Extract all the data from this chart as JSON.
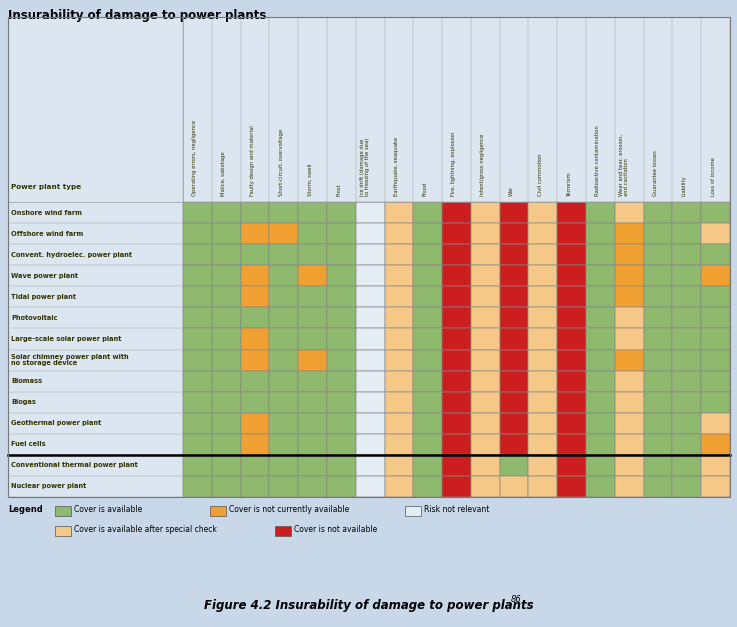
{
  "title_top": "Insurability of damage to power plants",
  "title_bottom": "Figure 4.2 Insurability of damage to power plants",
  "title_superscript": "86",
  "bg_color": "#c8d8e8",
  "table_bg": "#dbe6f0",
  "G": "#8fba6e",
  "O": "#f0a030",
  "P": "#f5c888",
  "W": "#e4ecf4",
  "R": "#cc1e1e",
  "columns": [
    "Operating errors, negligence",
    "Malice, sabotage",
    "Faulty design and material",
    "Short-circuit, overvoltage",
    "Storm, swell",
    "Frost",
    "Ice drift (damage due\nto freezing of the sea)",
    "Earthquake, seaquake",
    "Flood",
    "Fire, lightning, explosion",
    "Intent/gross negligence",
    "War",
    "Civil commotion",
    "Terrorism",
    "Radioactive contamination",
    "Wear and tear, erosion,\nand cavitation",
    "Guarantee losses",
    "Liability",
    "Loss of income"
  ],
  "rows": [
    "Onshore wind farm",
    "Offshore wind farm",
    "Convent. hydroelec. power plant",
    "Wave power plant",
    "Tidal power plant",
    "Photovoltaic",
    "Large-scale solar power plant",
    "Solar chimney power plant with\nno storage device",
    "Biomass",
    "Biogas",
    "Geothermal power plant",
    "Fuel cells",
    "Conventional thermal power plant",
    "Nuclear power plant"
  ],
  "grid_data": [
    [
      "G",
      "G",
      "G",
      "G",
      "G",
      "G",
      "W",
      "P",
      "G",
      "R",
      "P",
      "R",
      "P",
      "R",
      "G",
      "P",
      "G",
      "G",
      "G"
    ],
    [
      "G",
      "G",
      "O",
      "O",
      "G",
      "G",
      "W",
      "P",
      "G",
      "R",
      "P",
      "R",
      "P",
      "R",
      "G",
      "O",
      "G",
      "G",
      "P"
    ],
    [
      "G",
      "G",
      "G",
      "G",
      "G",
      "G",
      "W",
      "P",
      "G",
      "R",
      "P",
      "R",
      "P",
      "R",
      "G",
      "O",
      "G",
      "G",
      "G"
    ],
    [
      "G",
      "G",
      "O",
      "G",
      "O",
      "G",
      "W",
      "P",
      "G",
      "R",
      "P",
      "R",
      "P",
      "R",
      "G",
      "O",
      "G",
      "G",
      "O"
    ],
    [
      "G",
      "G",
      "O",
      "G",
      "G",
      "G",
      "W",
      "P",
      "G",
      "R",
      "P",
      "R",
      "P",
      "R",
      "G",
      "O",
      "G",
      "G",
      "G"
    ],
    [
      "G",
      "G",
      "G",
      "G",
      "G",
      "G",
      "W",
      "P",
      "G",
      "R",
      "P",
      "R",
      "P",
      "R",
      "G",
      "P",
      "G",
      "G",
      "G"
    ],
    [
      "G",
      "G",
      "O",
      "G",
      "G",
      "G",
      "W",
      "P",
      "G",
      "R",
      "P",
      "R",
      "P",
      "R",
      "G",
      "P",
      "G",
      "G",
      "G"
    ],
    [
      "G",
      "G",
      "O",
      "G",
      "O",
      "G",
      "W",
      "P",
      "G",
      "R",
      "P",
      "R",
      "P",
      "R",
      "G",
      "O",
      "G",
      "G",
      "G"
    ],
    [
      "G",
      "G",
      "G",
      "G",
      "G",
      "G",
      "W",
      "P",
      "G",
      "R",
      "P",
      "R",
      "P",
      "R",
      "G",
      "P",
      "G",
      "G",
      "G"
    ],
    [
      "G",
      "G",
      "G",
      "G",
      "G",
      "G",
      "W",
      "P",
      "G",
      "R",
      "P",
      "R",
      "P",
      "R",
      "G",
      "P",
      "G",
      "G",
      "G"
    ],
    [
      "G",
      "G",
      "O",
      "G",
      "G",
      "G",
      "W",
      "P",
      "G",
      "R",
      "P",
      "R",
      "P",
      "R",
      "G",
      "P",
      "G",
      "G",
      "P"
    ],
    [
      "G",
      "G",
      "O",
      "G",
      "G",
      "G",
      "W",
      "P",
      "G",
      "R",
      "P",
      "R",
      "P",
      "R",
      "G",
      "P",
      "G",
      "G",
      "O"
    ],
    [
      "G",
      "G",
      "G",
      "G",
      "G",
      "G",
      "W",
      "P",
      "G",
      "R",
      "P",
      "G",
      "P",
      "R",
      "G",
      "P",
      "G",
      "G",
      "P"
    ],
    [
      "G",
      "G",
      "G",
      "G",
      "G",
      "G",
      "W",
      "P",
      "G",
      "R",
      "P",
      "P",
      "P",
      "R",
      "G",
      "P",
      "G",
      "G",
      "P"
    ]
  ],
  "thick_row_after": 12,
  "legend_row1": [
    {
      "label": "Cover is available",
      "color": "#8fba6e"
    },
    {
      "label": "Cover is not currently available",
      "color": "#f0a030"
    },
    {
      "label": "Risk not relevant",
      "color": "#e4ecf4"
    }
  ],
  "legend_row2": [
    {
      "label": "Cover is available after special check",
      "color": "#f5c888"
    },
    {
      "label": "Cover is not available",
      "color": "#cc1e1e"
    }
  ]
}
